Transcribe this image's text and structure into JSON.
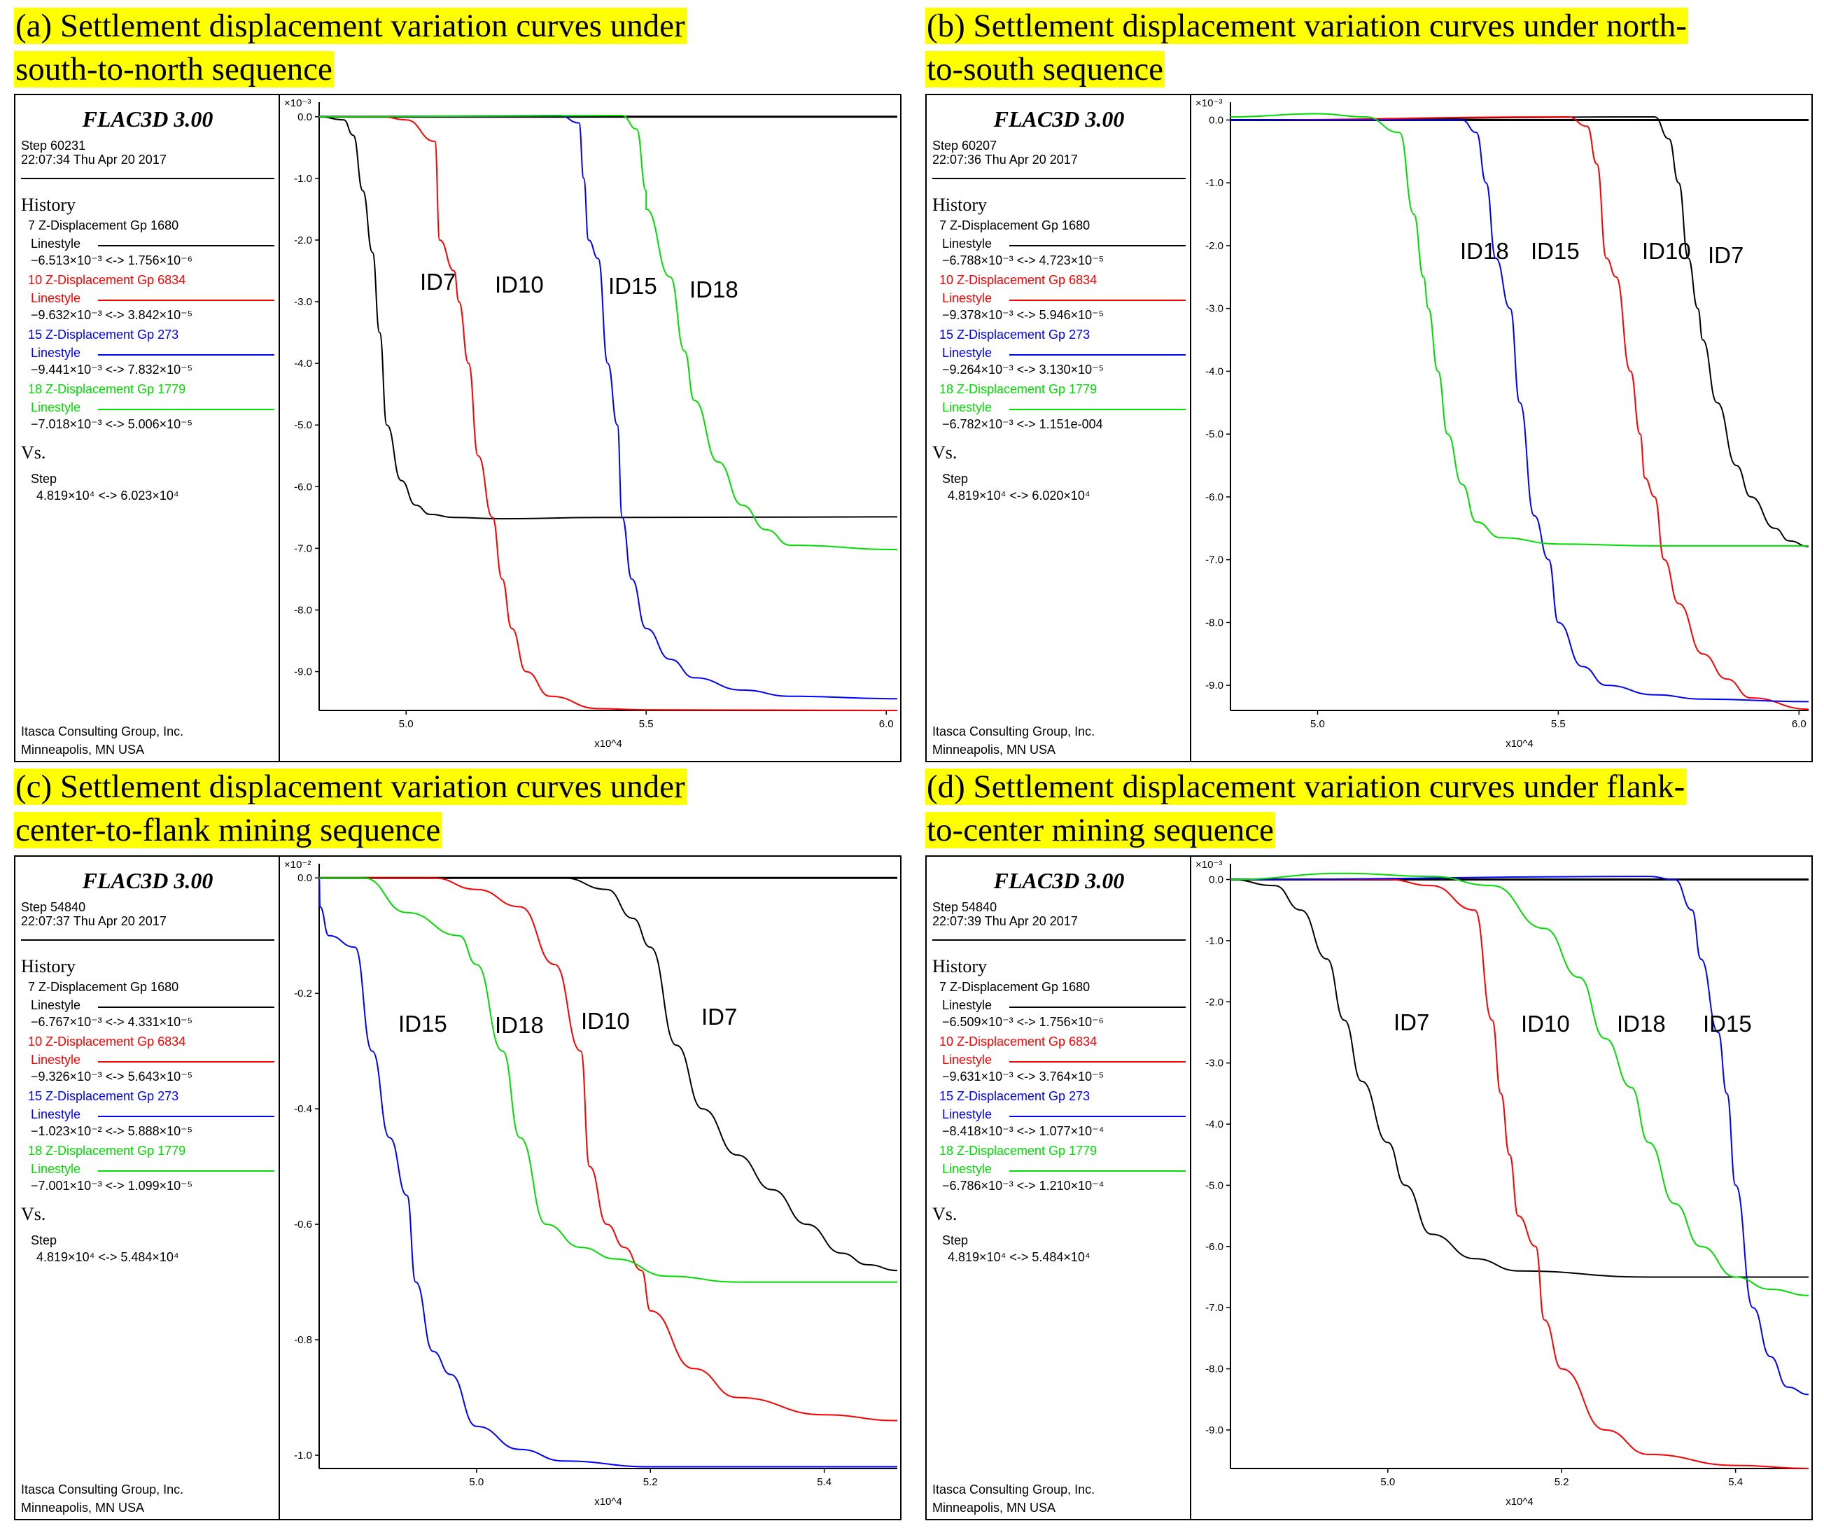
{
  "panels": [
    {
      "caption_line1": "(a) Settlement displacement variation curves under",
      "caption_line2": "south-to-north sequence",
      "flac_title": "FLAC3D 3.00",
      "step": "Step 60231",
      "timestamp": "22:07:34 Thu Apr 20 2017",
      "history_label": "History",
      "histories": [
        {
          "name": "7 Z-Displacement Gp 1680",
          "linestyle": "Linestyle",
          "range": "−6.513×10⁻³ <-> 1.756×10⁻⁶",
          "color": "#000000"
        },
        {
          "name": "10 Z-Displacement Gp 6834",
          "linestyle": "Linestyle",
          "range": "−9.632×10⁻³ <-> 3.842×10⁻⁵",
          "color": "#ff0000"
        },
        {
          "name": "15 Z-Displacement Gp 273",
          "linestyle": "Linestyle",
          "range": "−9.441×10⁻³ <-> 7.832×10⁻⁵",
          "color": "#0000ff"
        },
        {
          "name": "18 Z-Displacement Gp 1779",
          "linestyle": "Linestyle",
          "range": "−7.018×10⁻³ <-> 5.006×10⁻⁵",
          "color": "#00dd00"
        }
      ],
      "vs_label": "Vs.",
      "vs_var": "Step",
      "vs_range": "4.819×10⁴ <-> 6.023×10⁴",
      "company": "Itasca Consulting Group, Inc.",
      "location": "Minneapolis, MN  USA"
    },
    {
      "caption_line1": "(b) Settlement displacement variation curves under north-",
      "caption_line2": "to-south sequence",
      "flac_title": "FLAC3D 3.00",
      "step": "Step 60207",
      "timestamp": "22:07:36 Thu Apr 20 2017",
      "history_label": "History",
      "histories": [
        {
          "name": "7 Z-Displacement Gp 1680",
          "linestyle": "Linestyle",
          "range": "−6.788×10⁻³ <-> 4.723×10⁻⁵",
          "color": "#000000"
        },
        {
          "name": "10 Z-Displacement Gp 6834",
          "linestyle": "Linestyle",
          "range": "−9.378×10⁻³ <-> 5.946×10⁻⁵",
          "color": "#ff0000"
        },
        {
          "name": "15 Z-Displacement Gp 273",
          "linestyle": "Linestyle",
          "range": "−9.264×10⁻³ <-> 3.130×10⁻⁵",
          "color": "#0000ff"
        },
        {
          "name": "18 Z-Displacement Gp 1779",
          "linestyle": "Linestyle",
          "range": "−6.782×10⁻³ <-> 1.151e-004",
          "color": "#00dd00"
        }
      ],
      "vs_label": "Vs.",
      "vs_var": "Step",
      "vs_range": "4.819×10⁴ <-> 6.020×10⁴",
      "company": "Itasca Consulting Group, Inc.",
      "location": "Minneapolis, MN  USA"
    },
    {
      "caption_line1": "(c) Settlement displacement variation curves under",
      "caption_line2": "center-to-flank mining sequence",
      "flac_title": "FLAC3D 3.00",
      "step": "Step 54840",
      "timestamp": "22:07:37 Thu Apr 20 2017",
      "history_label": "History",
      "histories": [
        {
          "name": "7 Z-Displacement Gp 1680",
          "linestyle": "Linestyle",
          "range": "−6.767×10⁻³ <-> 4.331×10⁻⁵",
          "color": "#000000"
        },
        {
          "name": "10 Z-Displacement Gp 6834",
          "linestyle": "Linestyle",
          "range": "−9.326×10⁻³ <-> 5.643×10⁻⁵",
          "color": "#ff0000"
        },
        {
          "name": "15 Z-Displacement Gp 273",
          "linestyle": "Linestyle",
          "range": "−1.023×10⁻² <-> 5.888×10⁻⁵",
          "color": "#0000ff"
        },
        {
          "name": "18 Z-Displacement Gp 1779",
          "linestyle": "Linestyle",
          "range": "−7.001×10⁻³ <-> 1.099×10⁻⁵",
          "color": "#00dd00"
        }
      ],
      "vs_label": "Vs.",
      "vs_var": "Step",
      "vs_range": "4.819×10⁴ <-> 5.484×10⁴",
      "company": "Itasca Consulting Group, Inc.",
      "location": "Minneapolis, MN  USA"
    },
    {
      "caption_line1": "(d) Settlement displacement variation curves under flank-",
      "caption_line2": "to-center mining sequence",
      "flac_title": "FLAC3D 3.00",
      "step": "Step 54840",
      "timestamp": "22:07:39 Thu Apr 20 2017",
      "history_label": "History",
      "histories": [
        {
          "name": "7 Z-Displacement Gp 1680",
          "linestyle": "Linestyle",
          "range": "−6.509×10⁻³ <-> 1.756×10⁻⁶",
          "color": "#000000"
        },
        {
          "name": "10 Z-Displacement Gp 6834",
          "linestyle": "Linestyle",
          "range": "−9.631×10⁻³ <-> 3.764×10⁻⁵",
          "color": "#ff0000"
        },
        {
          "name": "15 Z-Displacement Gp 273",
          "linestyle": "Linestyle",
          "range": "−8.418×10⁻³ <-> 1.077×10⁻⁴",
          "color": "#0000ff"
        },
        {
          "name": "18 Z-Displacement Gp 1779",
          "linestyle": "Linestyle",
          "range": "−6.786×10⁻³ <-> 1.210×10⁻⁴",
          "color": "#00dd00"
        }
      ],
      "vs_label": "Vs.",
      "vs_var": "Step",
      "vs_range": "4.819×10⁴ <-> 5.484×10⁴",
      "company": "Itasca Consulting Group, Inc.",
      "location": "Minneapolis, MN  USA"
    }
  ],
  "chart_data": [
    {
      "type": "line",
      "title": "(a) Settlement displacement variation curves under south-to-north sequence",
      "ylabel_multiplier": "×10⁻³",
      "xlabel_multiplier": "x10^4",
      "xlim": [
        4.819,
        6.023
      ],
      "ylim": [
        -9.63,
        0.1
      ],
      "xticks": [
        5.0,
        5.5,
        6.0
      ],
      "xtick_labels": [
        "5.0",
        "5.5",
        "6.0"
      ],
      "yticks": [
        0,
        -1,
        -2,
        -3,
        -4,
        -5,
        -6,
        -7,
        -8,
        -9
      ],
      "ytick_labels": [
        "0.0",
        "-1.0",
        "-2.0",
        "-3.0",
        "-4.0",
        "-5.0",
        "-6.0",
        "-7.0",
        "-8.0",
        "-9.0"
      ],
      "series": [
        {
          "name": "ID7",
          "color": "#000000",
          "x": [
            4.819,
            4.87,
            4.89,
            4.91,
            4.93,
            4.945,
            4.96,
            4.99,
            5.02,
            5.05,
            5.1,
            5.2,
            5.4,
            6.023
          ],
          "y": [
            0,
            -0.05,
            -0.3,
            -1.2,
            -2.2,
            -3.5,
            -5.0,
            -5.9,
            -6.3,
            -6.45,
            -6.5,
            -6.52,
            -6.5,
            -6.49
          ]
        },
        {
          "name": "ID10",
          "color": "#ff0000",
          "x": [
            4.819,
            4.95,
            5.0,
            5.06,
            5.07,
            5.1,
            5.11,
            5.13,
            5.15,
            5.18,
            5.2,
            5.22,
            5.25,
            5.3,
            5.4,
            5.5,
            6.023
          ],
          "y": [
            0,
            0,
            -0.05,
            -0.4,
            -2.0,
            -2.5,
            -3.0,
            -4.0,
            -5.5,
            -6.5,
            -7.5,
            -8.3,
            -9.0,
            -9.4,
            -9.6,
            -9.62,
            -9.63
          ]
        },
        {
          "name": "ID15",
          "color": "#0000ff",
          "x": [
            4.819,
            5.32,
            5.36,
            5.37,
            5.38,
            5.4,
            5.42,
            5.44,
            5.45,
            5.47,
            5.5,
            5.55,
            5.6,
            5.7,
            5.8,
            6.023
          ],
          "y": [
            0,
            0.02,
            -0.1,
            -1.0,
            -2.0,
            -2.3,
            -4.0,
            -5.0,
            -6.5,
            -7.5,
            -8.3,
            -8.8,
            -9.1,
            -9.3,
            -9.4,
            -9.44
          ]
        },
        {
          "name": "ID18",
          "color": "#00dd00",
          "x": [
            4.819,
            5.45,
            5.48,
            5.5,
            5.5,
            5.55,
            5.58,
            5.6,
            5.65,
            5.7,
            5.75,
            5.8,
            6.023
          ],
          "y": [
            0,
            0.02,
            -0.2,
            -1.2,
            -1.5,
            -2.6,
            -3.8,
            -4.6,
            -5.6,
            -6.3,
            -6.7,
            -6.95,
            -7.02
          ]
        }
      ],
      "annotations": [
        "ID7",
        "ID10",
        "ID15",
        "ID18"
      ]
    },
    {
      "type": "line",
      "title": "(b) Settlement displacement variation curves under north-to-south sequence",
      "ylabel_multiplier": "×10⁻³",
      "xlabel_multiplier": "x10^4",
      "xlim": [
        4.819,
        6.02
      ],
      "ylim": [
        -9.4,
        0.15
      ],
      "xticks": [
        5.0,
        5.5,
        6.0
      ],
      "xtick_labels": [
        "5.0",
        "5.5",
        "6.0"
      ],
      "yticks": [
        0,
        -1,
        -2,
        -3,
        -4,
        -5,
        -6,
        -7,
        -8,
        -9
      ],
      "ytick_labels": [
        "0.0",
        "-1.0",
        "-2.0",
        "-3.0",
        "-4.0",
        "-5.0",
        "-6.0",
        "-7.0",
        "-8.0",
        "-9.0"
      ],
      "series": [
        {
          "name": "ID7",
          "color": "#000000",
          "x": [
            4.819,
            5.7,
            5.73,
            5.75,
            5.77,
            5.79,
            5.8,
            5.83,
            5.87,
            5.9,
            5.95,
            5.98,
            6.02
          ],
          "y": [
            0,
            0.05,
            -0.3,
            -1.0,
            -2.2,
            -3.0,
            -3.5,
            -4.5,
            -5.5,
            -6.0,
            -6.5,
            -6.7,
            -6.79
          ]
        },
        {
          "name": "ID10",
          "color": "#ff0000",
          "x": [
            4.819,
            5.52,
            5.56,
            5.58,
            5.6,
            5.62,
            5.65,
            5.67,
            5.68,
            5.7,
            5.72,
            5.75,
            5.8,
            5.85,
            5.9,
            6.02
          ],
          "y": [
            0,
            0.05,
            -0.1,
            -0.7,
            -2.2,
            -2.5,
            -4.0,
            -5.0,
            -5.7,
            -6.0,
            -7.0,
            -7.7,
            -8.5,
            -8.9,
            -9.2,
            -9.38
          ]
        },
        {
          "name": "ID15",
          "color": "#0000ff",
          "x": [
            4.819,
            5.3,
            5.33,
            5.35,
            5.37,
            5.4,
            5.42,
            5.45,
            5.48,
            5.5,
            5.55,
            5.6,
            5.7,
            5.8,
            6.02
          ],
          "y": [
            0,
            0,
            -0.2,
            -1.0,
            -2.2,
            -3.0,
            -4.5,
            -6.3,
            -7.0,
            -8.0,
            -8.7,
            -9.0,
            -9.15,
            -9.22,
            -9.26
          ]
        },
        {
          "name": "ID18",
          "color": "#00dd00",
          "x": [
            4.819,
            5.0,
            5.1,
            5.17,
            5.2,
            5.22,
            5.23,
            5.25,
            5.27,
            5.3,
            5.33,
            5.38,
            5.5,
            5.7,
            6.02
          ],
          "y": [
            0.05,
            0.1,
            0.05,
            -0.2,
            -1.5,
            -2.5,
            -3.0,
            -4.0,
            -5.0,
            -5.8,
            -6.4,
            -6.65,
            -6.75,
            -6.78,
            -6.78
          ]
        }
      ],
      "annotations": [
        "ID18",
        "ID15",
        "ID10",
        "ID7"
      ]
    },
    {
      "type": "line",
      "title": "(c) Settlement displacement variation curves under center-to-flank mining sequence",
      "ylabel_multiplier": "×10⁻²",
      "xlabel_multiplier": "x10^4",
      "xlim": [
        4.819,
        5.484
      ],
      "ylim": [
        -1.023,
        0.01
      ],
      "xticks": [
        5.0,
        5.2,
        5.4
      ],
      "xtick_labels": [
        "5.0",
        "5.2",
        "5.4"
      ],
      "yticks": [
        0,
        -0.2,
        -0.4,
        -0.6,
        -0.8,
        -1.0
      ],
      "ytick_labels": [
        "0.0",
        "-0.2",
        "-0.4",
        "-0.6",
        "-0.8",
        "-1.0"
      ],
      "series": [
        {
          "name": "ID7",
          "color": "#000000",
          "x": [
            4.819,
            5.1,
            5.15,
            5.18,
            5.2,
            5.23,
            5.26,
            5.3,
            5.34,
            5.38,
            5.42,
            5.45,
            5.484
          ],
          "y": [
            0,
            0,
            -0.02,
            -0.07,
            -0.12,
            -0.29,
            -0.4,
            -0.48,
            -0.54,
            -0.6,
            -0.65,
            -0.67,
            -0.68
          ]
        },
        {
          "name": "ID10",
          "color": "#ff0000",
          "x": [
            4.819,
            4.95,
            5.0,
            5.05,
            5.09,
            5.12,
            5.13,
            5.15,
            5.17,
            5.19,
            5.2,
            5.25,
            5.3,
            5.4,
            5.484
          ],
          "y": [
            0,
            0,
            -0.02,
            -0.05,
            -0.15,
            -0.3,
            -0.5,
            -0.6,
            -0.64,
            -0.68,
            -0.75,
            -0.85,
            -0.9,
            -0.93,
            -0.94
          ]
        },
        {
          "name": "ID15",
          "color": "#0000ff",
          "x": [
            4.819,
            4.82,
            4.83,
            4.86,
            4.88,
            4.9,
            4.92,
            4.93,
            4.95,
            4.97,
            5.0,
            5.05,
            5.1,
            5.2,
            5.484
          ],
          "y": [
            0,
            -0.05,
            -0.1,
            -0.12,
            -0.3,
            -0.45,
            -0.55,
            -0.7,
            -0.82,
            -0.86,
            -0.95,
            -0.99,
            -1.01,
            -1.02,
            -1.02
          ]
        },
        {
          "name": "ID18",
          "color": "#00dd00",
          "x": [
            4.819,
            4.87,
            4.92,
            4.98,
            5.0,
            5.03,
            5.05,
            5.08,
            5.12,
            5.16,
            5.22,
            5.3,
            5.484
          ],
          "y": [
            0,
            0,
            -0.06,
            -0.1,
            -0.15,
            -0.3,
            -0.45,
            -0.6,
            -0.64,
            -0.66,
            -0.69,
            -0.7,
            -0.7
          ]
        }
      ],
      "annotations": [
        "ID15",
        "ID18",
        "ID10",
        "ID7"
      ]
    },
    {
      "type": "line",
      "title": "(d) Settlement displacement variation curves under flank-to-center mining sequence",
      "ylabel_multiplier": "×10⁻³",
      "xlabel_multiplier": "x10^4",
      "xlim": [
        4.819,
        5.484
      ],
      "ylim": [
        -9.63,
        0.12
      ],
      "xticks": [
        5.0,
        5.2,
        5.4
      ],
      "xtick_labels": [
        "5.0",
        "5.2",
        "5.4"
      ],
      "yticks": [
        0,
        -1,
        -2,
        -3,
        -4,
        -5,
        -6,
        -7,
        -8,
        -9
      ],
      "ytick_labels": [
        "0.0",
        "-1.0",
        "-2.0",
        "-3.0",
        "-4.0",
        "-5.0",
        "-6.0",
        "-7.0",
        "-8.0",
        "-9.0"
      ],
      "series": [
        {
          "name": "ID7",
          "color": "#000000",
          "x": [
            4.819,
            4.87,
            4.9,
            4.93,
            4.95,
            4.97,
            5.0,
            5.02,
            5.05,
            5.1,
            5.15,
            5.3,
            5.484
          ],
          "y": [
            0,
            -0.1,
            -0.5,
            -1.3,
            -2.3,
            -3.3,
            -4.3,
            -5.0,
            -5.8,
            -6.2,
            -6.4,
            -6.5,
            -6.5
          ]
        },
        {
          "name": "ID10",
          "color": "#ff0000",
          "x": [
            4.819,
            5.0,
            5.05,
            5.1,
            5.12,
            5.13,
            5.14,
            5.15,
            5.17,
            5.18,
            5.2,
            5.25,
            5.3,
            5.4,
            5.484
          ],
          "y": [
            0,
            0,
            -0.1,
            -0.5,
            -2.3,
            -3.5,
            -4.5,
            -5.5,
            -6.0,
            -7.2,
            -8.0,
            -9.0,
            -9.4,
            -9.58,
            -9.63
          ]
        },
        {
          "name": "ID15",
          "color": "#0000ff",
          "x": [
            4.819,
            5.3,
            5.33,
            5.35,
            5.36,
            5.38,
            5.39,
            5.4,
            5.42,
            5.44,
            5.46,
            5.484
          ],
          "y": [
            0,
            0.05,
            0,
            -0.5,
            -1.3,
            -2.5,
            -3.5,
            -5.0,
            -7.0,
            -7.8,
            -8.3,
            -8.42
          ]
        },
        {
          "name": "ID18",
          "color": "#00dd00",
          "x": [
            4.819,
            4.95,
            5.05,
            5.12,
            5.18,
            5.22,
            5.25,
            5.28,
            5.3,
            5.33,
            5.36,
            5.4,
            5.44,
            5.484
          ],
          "y": [
            0,
            0.1,
            0.05,
            -0.1,
            -0.8,
            -1.6,
            -2.6,
            -3.4,
            -4.3,
            -5.3,
            -6.0,
            -6.5,
            -6.7,
            -6.8
          ]
        }
      ],
      "annotations": [
        "ID7",
        "ID10",
        "ID18",
        "ID15"
      ]
    }
  ]
}
